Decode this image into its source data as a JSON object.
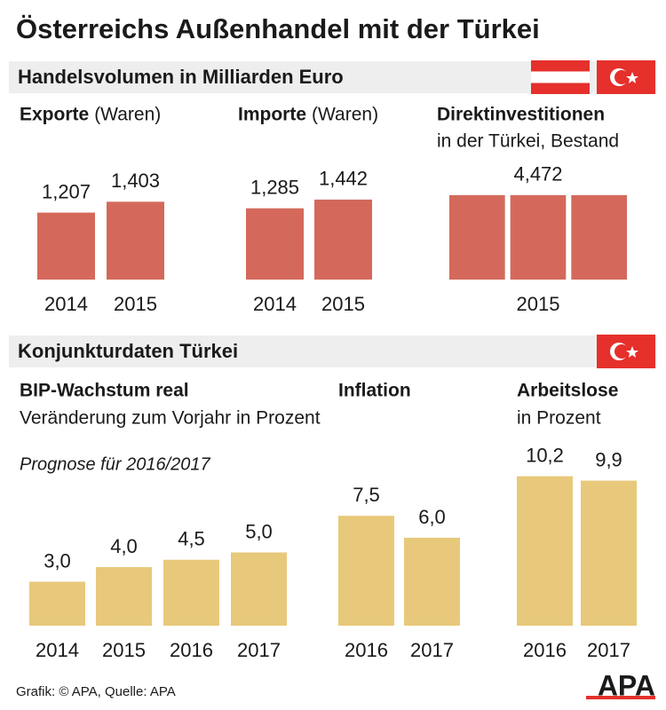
{
  "title": "Österreichs Außenhandel mit der Türkei",
  "sections": [
    "Handelsvolumen in Milliarden Euro",
    "Konjunkturdaten Türkei"
  ],
  "source": "Grafik: © APA, Quelle: APA",
  "logo": "APA",
  "chart_data": [
    {
      "type": "bar",
      "title": "Exporte",
      "subtitle": "(Waren)",
      "categories": [
        "2014",
        "2015"
      ],
      "values": [
        1.207,
        1.403
      ],
      "value_labels": [
        "1,207",
        "1,403"
      ],
      "color": "#d4695b",
      "ylim": [
        0,
        1.6
      ]
    },
    {
      "type": "bar",
      "title": "Importe",
      "subtitle": "(Waren)",
      "categories": [
        "2014",
        "2015"
      ],
      "values": [
        1.285,
        1.442
      ],
      "value_labels": [
        "1,285",
        "1,442"
      ],
      "color": "#d4695b",
      "ylim": [
        0,
        1.6
      ]
    },
    {
      "type": "bar",
      "title": "Direktinvestitionen",
      "subtitle": "in der Türkei, Bestand",
      "categories": [
        "2015"
      ],
      "values": [
        4.472
      ],
      "value_labels": [
        "4,472"
      ],
      "color": "#d4695b",
      "ylim": [
        0,
        4.7
      ]
    },
    {
      "type": "bar",
      "title": "BIP-Wachstum real",
      "subtitle": "Veränderung zum Vorjahr in Prozent",
      "note": "Prognose für 2016/2017",
      "categories": [
        "2014",
        "2015",
        "2016",
        "2017"
      ],
      "values": [
        3.0,
        4.0,
        4.5,
        5.0
      ],
      "value_labels": [
        "3,0",
        "4,0",
        "4,5",
        "5,0"
      ],
      "color": "#e8c97b",
      "ylim": [
        0,
        10.6
      ]
    },
    {
      "type": "bar",
      "title": "Inflation",
      "categories": [
        "2016",
        "2017"
      ],
      "values": [
        7.5,
        6.0
      ],
      "value_labels": [
        "7,5",
        "6,0"
      ],
      "color": "#e8c97b",
      "ylim": [
        0,
        10.6
      ]
    },
    {
      "type": "bar",
      "title": "Arbeitslose",
      "subtitle": "in Prozent",
      "categories": [
        "2016",
        "2017"
      ],
      "values": [
        10.2,
        9.9
      ],
      "value_labels": [
        "10,2",
        "9,9"
      ],
      "color": "#e8c97b",
      "ylim": [
        0,
        10.6
      ]
    }
  ]
}
